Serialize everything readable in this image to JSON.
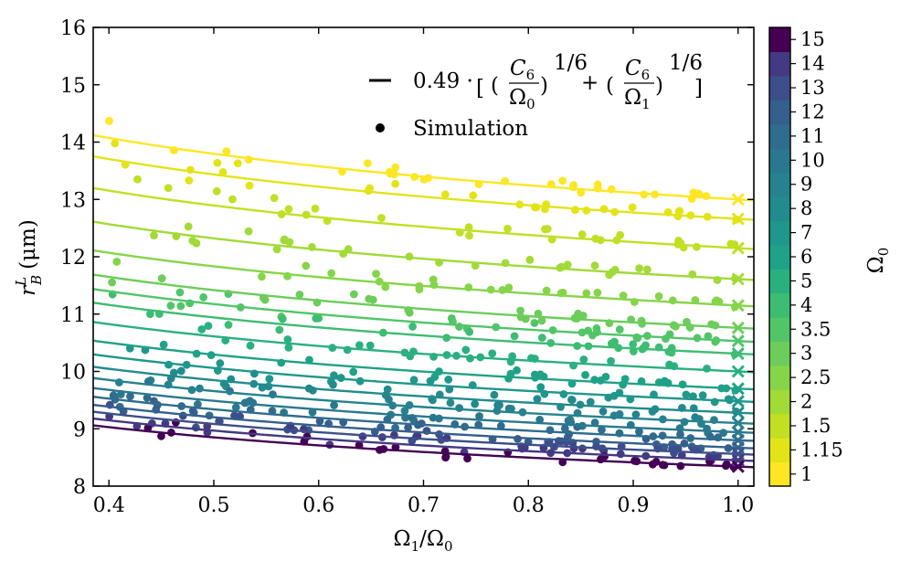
{
  "chart_data": {
    "type": "line",
    "title": "",
    "xlabel_base": "Ω",
    "xlabel_sub1": "1",
    "xlabel_sep": "/",
    "xlabel_sub2": "0",
    "ylabel_base": "r",
    "ylabel_sup": "L",
    "ylabel_sub": "B",
    "ylabel_unit": "(μm)",
    "xlim": [
      0.385,
      1.015
    ],
    "ylim": [
      8,
      16
    ],
    "x_ticks": [
      0.4,
      0.5,
      0.6,
      0.7,
      0.8,
      0.9,
      1.0
    ],
    "x_tick_labels": [
      "0.4",
      "0.5",
      "0.6",
      "0.7",
      "0.8",
      "0.9",
      "1.0"
    ],
    "y_ticks": [
      8,
      9,
      10,
      11,
      12,
      13,
      14,
      15,
      16
    ],
    "y_tick_labels": [
      "8",
      "9",
      "10",
      "11",
      "12",
      "13",
      "14",
      "15",
      "16"
    ],
    "model": {
      "coefficient": 0.49,
      "c6_over_omega1_at_unity": [
        13.0,
        12.66,
        12.15,
        11.61,
        11.15,
        10.76,
        10.53,
        10.31,
        10.0,
        9.7,
        9.48,
        9.28,
        9.1,
        8.94,
        8.8,
        8.67,
        8.56,
        8.45,
        8.34
      ]
    },
    "legend": {
      "line_label_prefix": "0.49 ·",
      "frac_num": "C",
      "frac_num_sub": "6",
      "frac_den": "Ω",
      "frac_den_sub0": "0",
      "frac_den_sub1": "1",
      "exponent": "1/6",
      "plus": "+",
      "dot_label": "Simulation"
    },
    "colorbar": {
      "title_base": "Ω",
      "title_sub": "0",
      "levels": [
        "1",
        "1.15",
        "1.5",
        "2",
        "2.5",
        "3",
        "3.5",
        "4",
        "5",
        "6",
        "7",
        "8",
        "9",
        "10",
        "11",
        "12",
        "13",
        "14",
        "15"
      ],
      "colors": [
        "#fde725",
        "#e2e418",
        "#c2df23",
        "#a2da37",
        "#86d549",
        "#6ccd5a",
        "#52c569",
        "#3dbc74",
        "#2ab07f",
        "#1fa287",
        "#1f978b",
        "#228b8d",
        "#26828e",
        "#2a788e",
        "#2f6c8e",
        "#355f8d",
        "#3c4f8a",
        "#443983",
        "#440154"
      ]
    },
    "series_colors": [
      "#fde725",
      "#e2e418",
      "#c2df23",
      "#a2da37",
      "#86d549",
      "#6ccd5a",
      "#52c569",
      "#3dbc74",
      "#2ab07f",
      "#1fa287",
      "#1f978b",
      "#228b8d",
      "#26828e",
      "#2a788e",
      "#2f6c8e",
      "#355f8d",
      "#3c4f8a",
      "#443983",
      "#440154"
    ],
    "annotations": {
      "endpoint_marker": "x"
    }
  }
}
